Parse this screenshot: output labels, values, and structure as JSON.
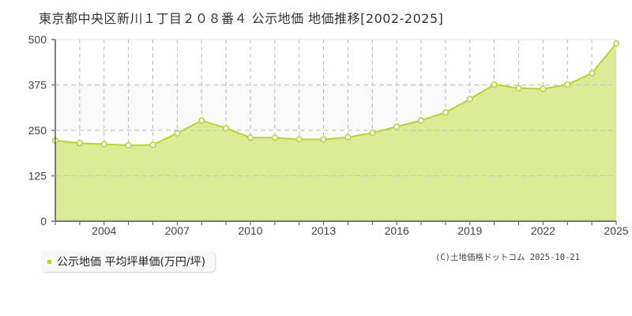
{
  "title": "東京都中央区新川１丁目２０８番４ 公示地価 地価推移[2002-2025]",
  "legend": {
    "label": "公示地価 平均坪単価(万円/坪)",
    "color": "#b5d334"
  },
  "copyright": "(C)土地価格ドットコム 2025-10-21",
  "chart_data": {
    "type": "area",
    "title": "東京都中央区新川１丁目２０８番４ 公示地価 地価推移[2002-2025]",
    "xlabel": "",
    "ylabel": "",
    "x": [
      2002,
      2003,
      2004,
      2005,
      2006,
      2007,
      2008,
      2009,
      2010,
      2011,
      2012,
      2013,
      2014,
      2015,
      2016,
      2017,
      2018,
      2019,
      2020,
      2021,
      2022,
      2023,
      2024,
      2025
    ],
    "series": [
      {
        "name": "公示地価 平均坪単価(万円/坪)",
        "values": [
          222,
          215,
          212,
          209,
          210,
          242,
          277,
          256,
          230,
          230,
          225,
          225,
          231,
          243,
          260,
          277,
          299,
          336,
          376,
          366,
          364,
          376,
          407,
          489
        ],
        "color": "#b5d334",
        "fill": "#dcec96"
      }
    ],
    "x_tick_labels": [
      "2004",
      "2007",
      "2010",
      "2013",
      "2016",
      "2019",
      "2022",
      "2025"
    ],
    "y_tick_labels": [
      "0",
      "125",
      "250",
      "375",
      "500"
    ],
    "ylim": [
      0,
      500
    ],
    "xlim": [
      2002,
      2025
    ],
    "grid": true,
    "legend_position": "bottom-left"
  }
}
